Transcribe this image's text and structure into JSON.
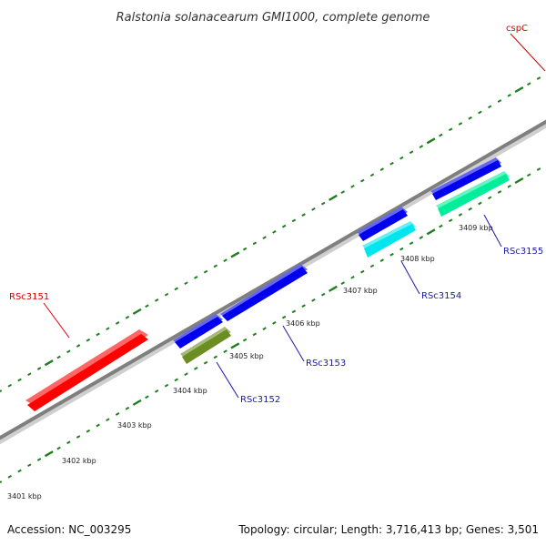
{
  "title": "Ralstonia solanacearum GMI1000, complete genome",
  "footer": {
    "accession": "Accession: NC_003295",
    "topology": "Topology: circular; Length: 3,716,413 bp; Genes: 3,501"
  },
  "colors": {
    "backbone": "#7f7f7f",
    "ticks": "#1f7f1f",
    "label_red": "#d40000",
    "label_blue": "#1a1aa8"
  },
  "tick_labels": [
    "3401 kbp",
    "3402 kbp",
    "3403 kbp",
    "3404 kbp",
    "3405 kbp",
    "3406 kbp",
    "3407 kbp",
    "3408 kbp",
    "3409 kbp"
  ],
  "features": [
    {
      "id": "rsc3151",
      "color": "#ff0000",
      "strand": "forward"
    },
    {
      "id": "rsc3152-a",
      "color": "#0000ee",
      "strand": "forward"
    },
    {
      "id": "rsc3152-b",
      "color": "#6b8e23",
      "strand": "forward"
    },
    {
      "id": "rsc3153",
      "color": "#0000ee",
      "strand": "forward"
    },
    {
      "id": "rsc3154-a",
      "color": "#0000ee",
      "strand": "forward"
    },
    {
      "id": "rsc3154-b",
      "color": "#00e5ee",
      "strand": "forward"
    },
    {
      "id": "rsc3155-a",
      "color": "#0000ee",
      "strand": "forward"
    },
    {
      "id": "rsc3155-b",
      "color": "#00ee99",
      "strand": "forward"
    }
  ],
  "labels": {
    "cspc": "cspC",
    "rsc3151": "RSc3151",
    "rsc3152": "RSc3152",
    "rsc3153": "RSc3153",
    "rsc3154": "RSc3154",
    "rsc3155": "RSc3155"
  }
}
